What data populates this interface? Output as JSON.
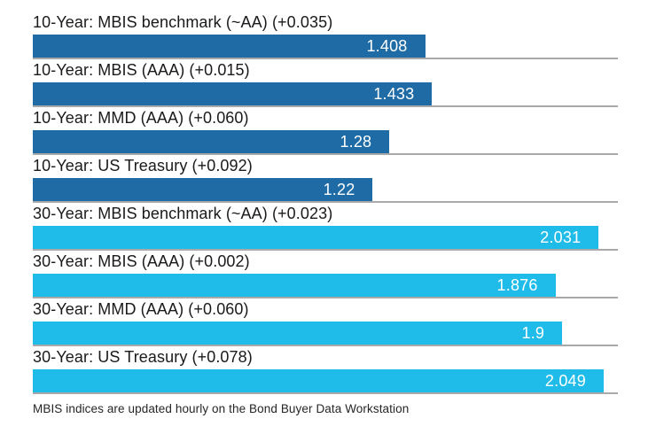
{
  "chart_data": {
    "type": "bar",
    "orientation": "horizontal",
    "xlim": [
      0,
      2.1
    ],
    "grid": false,
    "legend": "none",
    "value_labels_position": "inside-right",
    "colors": {
      "ten_year_bar": "#1e6ba6",
      "thirty_year_bar": "#1fbcea",
      "value_label_text": "#ffffff",
      "category_label_text": "#1a1a1a",
      "baseline_rule": "#a9a9a9"
    },
    "bars": [
      {
        "label": "10-Year: MBIS benchmark (~AA) (+0.035)",
        "value": 1.408,
        "value_label": "1.408",
        "group": "ten_year_bar"
      },
      {
        "label": "10-Year: MBIS (AAA) (+0.015)",
        "value": 1.433,
        "value_label": "1.433",
        "group": "ten_year_bar"
      },
      {
        "label": "10-Year: MMD (AAA) (+0.060)",
        "value": 1.28,
        "value_label": "1.28",
        "group": "ten_year_bar"
      },
      {
        "label": "10-Year: US Treasury (+0.092)",
        "value": 1.22,
        "value_label": "1.22",
        "group": "ten_year_bar"
      },
      {
        "label": "30-Year: MBIS benchmark (~AA) (+0.023)",
        "value": 2.031,
        "value_label": "2.031",
        "group": "thirty_year_bar"
      },
      {
        "label": "30-Year: MBIS (AAA) (+0.002)",
        "value": 1.876,
        "value_label": "1.876",
        "group": "thirty_year_bar"
      },
      {
        "label": "30-Year: MMD (AAA) (+0.060)",
        "value": 1.9,
        "value_label": "1.9",
        "group": "thirty_year_bar"
      },
      {
        "label": "30-Year: US Treasury (+0.078)",
        "value": 2.049,
        "value_label": "2.049",
        "group": "thirty_year_bar"
      }
    ],
    "footnote": "MBIS indices are updated hourly on the Bond Buyer Data Workstation"
  }
}
